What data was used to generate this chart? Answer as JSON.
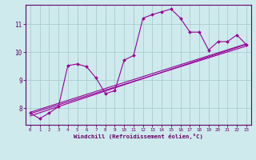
{
  "title": "",
  "xlabel": "Windchill (Refroidissement éolien,°C)",
  "bg_color": "#ceeaed",
  "line_color": "#990099",
  "grid_color": "#aacccc",
  "axis_color": "#660066",
  "text_color": "#660066",
  "xlim": [
    -0.5,
    23.5
  ],
  "ylim": [
    7.4,
    11.7
  ],
  "yticks": [
    8,
    9,
    10,
    11
  ],
  "xticks": [
    0,
    1,
    2,
    3,
    4,
    5,
    6,
    7,
    8,
    9,
    10,
    11,
    12,
    13,
    14,
    15,
    16,
    17,
    18,
    19,
    20,
    21,
    22,
    23
  ],
  "main_x": [
    0,
    1,
    2,
    3,
    4,
    5,
    6,
    7,
    8,
    9,
    10,
    11,
    12,
    13,
    14,
    15,
    16,
    17,
    18,
    19,
    20,
    21,
    22,
    23
  ],
  "main_y": [
    7.82,
    7.62,
    7.82,
    8.05,
    9.52,
    9.58,
    9.48,
    9.08,
    8.52,
    8.62,
    9.72,
    9.88,
    11.22,
    11.35,
    11.45,
    11.55,
    11.22,
    10.72,
    10.72,
    10.08,
    10.38,
    10.38,
    10.62,
    10.28
  ],
  "reg_line1_x": [
    0,
    23
  ],
  "reg_line1_y": [
    7.85,
    10.3
  ],
  "reg_line2_x": [
    0,
    23
  ],
  "reg_line2_y": [
    7.8,
    10.22
  ],
  "reg_line3_x": [
    0,
    23
  ],
  "reg_line3_y": [
    7.72,
    10.28
  ]
}
